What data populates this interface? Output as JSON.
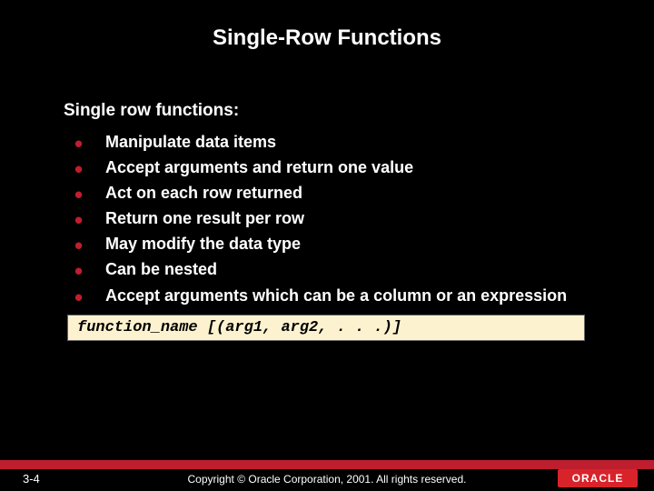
{
  "title": "Single-Row Functions",
  "subtitle": "Single row functions:",
  "bullets": [
    "Manipulate data items",
    "Accept arguments and return one value",
    "Act on each row returned",
    "Return one result per row",
    "May modify the data type",
    "Can be nested",
    "Accept arguments which can be a column or an expression"
  ],
  "code": {
    "fn": "function_name",
    "args": " [(arg1, arg2, . . .)]"
  },
  "footer": {
    "page": "3-4",
    "copyright": "Copyright © Oracle Corporation, 2001. All rights reserved.",
    "logo": "ORACLE"
  },
  "colors": {
    "background": "#000000",
    "text": "#ffffff",
    "bullet": "#bf1e2e",
    "code_bg": "#fdf2cf",
    "footer_bar": "#bf1e2e",
    "logo_bg": "#d8232a"
  }
}
